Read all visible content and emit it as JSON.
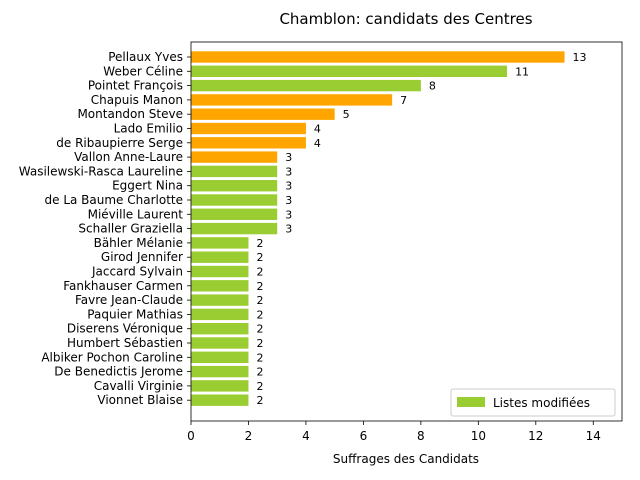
{
  "chart_data": {
    "type": "bar",
    "orientation": "horizontal",
    "title": "Chamblon: candidats des Centres",
    "xlabel": "Suffrages des Candidats",
    "ylabel": "",
    "xlim": [
      0,
      15
    ],
    "xticks": [
      0,
      2,
      4,
      6,
      8,
      10,
      12,
      14
    ],
    "grid": false,
    "legend": {
      "placement": "lower-right",
      "entries": [
        {
          "label": "Listes modifiées",
          "color": "#9acd32"
        }
      ]
    },
    "colors": {
      "orange": "#ffa500",
      "green": "#9acd32"
    },
    "categories": [
      "Pellaux Yves",
      "Weber Céline",
      "Pointet François",
      "Chapuis Manon",
      "Montandon Steve",
      "Lado Emilio",
      "de Ribaupierre Serge",
      "Vallon Anne-Laure",
      "Wasilewski-Rasca Laureline",
      "Eggert Nina",
      "de La Baume Charlotte",
      "Miéville Laurent",
      "Schaller Graziella",
      "Bähler Mélanie",
      "Girod Jennifer",
      "Jaccard Sylvain",
      "Fankhauser Carmen",
      "Favre Jean-Claude",
      "Paquier Mathias",
      "Diserens Véronique",
      "Humbert Sébastien",
      "Albiker Pochon Caroline",
      "De Benedictis Jerome",
      "Cavalli Virginie",
      "Vionnet Blaise"
    ],
    "values": [
      13,
      11,
      8,
      7,
      5,
      4,
      4,
      3,
      3,
      3,
      3,
      3,
      3,
      2,
      2,
      2,
      2,
      2,
      2,
      2,
      2,
      2,
      2,
      2,
      2
    ],
    "bar_colors": [
      "#ffa500",
      "#9acd32",
      "#9acd32",
      "#ffa500",
      "#ffa500",
      "#ffa500",
      "#ffa500",
      "#ffa500",
      "#9acd32",
      "#9acd32",
      "#9acd32",
      "#9acd32",
      "#9acd32",
      "#9acd32",
      "#9acd32",
      "#9acd32",
      "#9acd32",
      "#9acd32",
      "#9acd32",
      "#9acd32",
      "#9acd32",
      "#9acd32",
      "#9acd32",
      "#9acd32",
      "#9acd32"
    ]
  }
}
